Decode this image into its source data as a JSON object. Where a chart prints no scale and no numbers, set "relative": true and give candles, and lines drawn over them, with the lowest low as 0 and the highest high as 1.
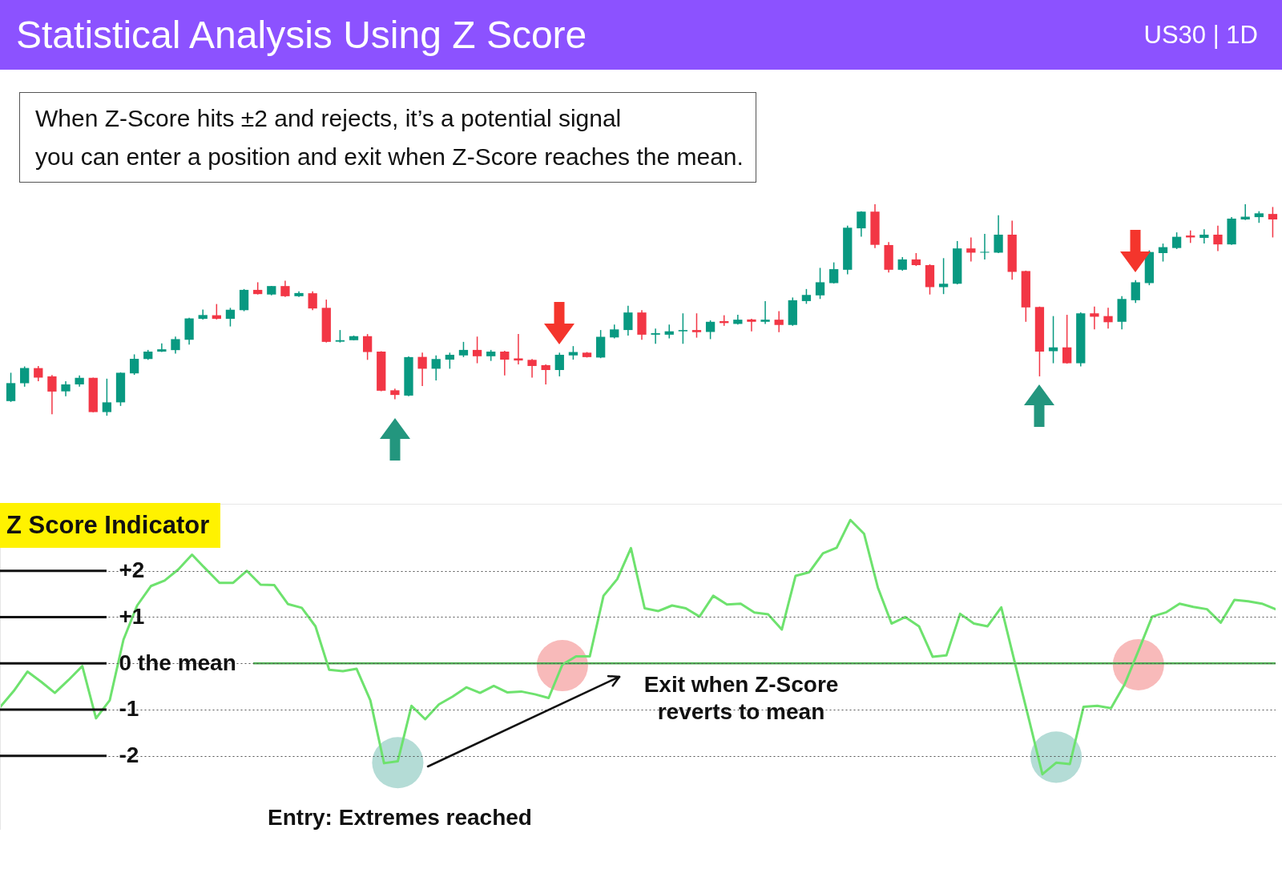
{
  "chart_data": [
    {
      "type": "candlestick",
      "title": "Statistical Analysis Using Z Score",
      "subtitle": "US30 | 1D",
      "annotations": [
        "When Z-Score hits ±2 and rejects, it’s a potential signal\nyou can enter a position and exit when Z-Score reaches the mean."
      ],
      "relative": true,
      "categories": [
        null,
        null,
        null,
        null,
        null,
        null,
        null,
        null,
        null,
        null,
        null,
        null,
        null,
        null,
        null,
        null,
        null,
        null,
        null,
        null,
        null,
        null,
        null,
        null,
        null,
        null,
        null,
        null,
        null,
        null,
        null,
        null,
        null,
        null,
        null,
        null,
        null,
        null,
        null,
        null,
        null,
        null,
        null,
        null,
        null,
        null,
        null,
        null,
        null,
        null,
        null,
        null,
        null,
        null,
        null,
        null,
        null,
        null,
        null,
        null,
        null,
        null,
        null,
        null,
        null,
        null,
        null,
        null,
        null,
        null,
        null,
        null,
        null,
        null,
        null,
        null,
        null,
        null,
        null,
        null,
        null,
        null,
        null,
        null,
        null,
        null,
        null,
        null,
        null,
        null,
        null,
        null,
        null
      ],
      "ohlc": [
        [
          0.069,
          0.203,
          0.065,
          0.154
        ],
        [
          0.153,
          0.233,
          0.137,
          0.225
        ],
        [
          0.225,
          0.235,
          0.163,
          0.18
        ],
        [
          0.186,
          0.192,
          0.007,
          0.114
        ],
        [
          0.115,
          0.163,
          0.092,
          0.148
        ],
        [
          0.148,
          0.19,
          0.137,
          0.179
        ],
        [
          0.179,
          0.18,
          0.016,
          0.017
        ],
        [
          0.017,
          0.175,
          0.0,
          0.063
        ],
        [
          0.063,
          0.205,
          0.046,
          0.203
        ],
        [
          0.2,
          0.29,
          0.193,
          0.269
        ],
        [
          0.268,
          0.311,
          0.264,
          0.303
        ],
        [
          0.303,
          0.342,
          0.301,
          0.314
        ],
        [
          0.31,
          0.374,
          0.294,
          0.362
        ],
        [
          0.359,
          0.463,
          0.336,
          0.46
        ],
        [
          0.458,
          0.502,
          0.455,
          0.476
        ],
        [
          0.475,
          0.528,
          0.455,
          0.458
        ],
        [
          0.458,
          0.51,
          0.422,
          0.501
        ],
        [
          0.499,
          0.599,
          0.494,
          0.595
        ],
        [
          0.595,
          0.631,
          0.573,
          0.575
        ],
        [
          0.573,
          0.614,
          0.569,
          0.613
        ],
        [
          0.613,
          0.638,
          0.562,
          0.565
        ],
        [
          0.565,
          0.588,
          0.562,
          0.58
        ],
        [
          0.579,
          0.588,
          0.499,
          0.507
        ],
        [
          0.51,
          0.549,
          0.346,
          0.349
        ],
        [
          0.35,
          0.405,
          0.346,
          0.357
        ],
        [
          0.357,
          0.379,
          0.356,
          0.376
        ],
        [
          0.376,
          0.386,
          0.264,
          0.301
        ],
        [
          0.303,
          0.305,
          0.116,
          0.118
        ],
        [
          0.12,
          0.128,
          0.078,
          0.098
        ],
        [
          0.095,
          0.28,
          0.092,
          0.277
        ],
        [
          0.278,
          0.298,
          0.14,
          0.222
        ],
        [
          0.222,
          0.285,
          0.167,
          0.268
        ],
        [
          0.265,
          0.298,
          0.222,
          0.288
        ],
        [
          0.285,
          0.349,
          0.277,
          0.311
        ],
        [
          0.311,
          0.374,
          0.248,
          0.281
        ],
        [
          0.281,
          0.311,
          0.259,
          0.303
        ],
        [
          0.303,
          0.307,
          0.19,
          0.265
        ],
        [
          0.271,
          0.386,
          0.242,
          0.261
        ],
        [
          0.264,
          0.268,
          0.18,
          0.235
        ],
        [
          0.239,
          0.242,
          0.148,
          0.216
        ],
        [
          0.216,
          0.298,
          0.186,
          0.288
        ],
        [
          0.285,
          0.329,
          0.265,
          0.301
        ],
        [
          0.298,
          0.301,
          0.275,
          0.277
        ],
        [
          0.275,
          0.405,
          0.272,
          0.373
        ],
        [
          0.37,
          0.431,
          0.366,
          0.408
        ],
        [
          0.405,
          0.52,
          0.379,
          0.488
        ],
        [
          0.488,
          0.499,
          0.359,
          0.383
        ],
        [
          0.383,
          0.412,
          0.34,
          0.39
        ],
        [
          0.383,
          0.431,
          0.366,
          0.399
        ],
        [
          0.399,
          0.484,
          0.34,
          0.405
        ],
        [
          0.405,
          0.484,
          0.369,
          0.395
        ],
        [
          0.396,
          0.451,
          0.362,
          0.444
        ],
        [
          0.447,
          0.475,
          0.425,
          0.438
        ],
        [
          0.434,
          0.477,
          0.431,
          0.454
        ],
        [
          0.455,
          0.458,
          0.399,
          0.444
        ],
        [
          0.444,
          0.542,
          0.434,
          0.454
        ],
        [
          0.454,
          0.494,
          0.395,
          0.429
        ],
        [
          0.429,
          0.559,
          0.425,
          0.546
        ],
        [
          0.542,
          0.599,
          0.529,
          0.571
        ],
        [
          0.569,
          0.699,
          0.552,
          0.631
        ],
        [
          0.627,
          0.725,
          0.625,
          0.693
        ],
        [
          0.69,
          0.899,
          0.669,
          0.889
        ],
        [
          0.886,
          0.967,
          0.847,
          0.965
        ],
        [
          0.965,
          1.0,
          0.793,
          0.808
        ],
        [
          0.807,
          0.821,
          0.677,
          0.69
        ],
        [
          0.69,
          0.75,
          0.686,
          0.739
        ],
        [
          0.739,
          0.769,
          0.708,
          0.712
        ],
        [
          0.712,
          0.716,
          0.573,
          0.608
        ],
        [
          0.608,
          0.745,
          0.575,
          0.624
        ],
        [
          0.624,
          0.826,
          0.621,
          0.791
        ],
        [
          0.791,
          0.843,
          0.729,
          0.771
        ],
        [
          0.771,
          0.86,
          0.739,
          0.775
        ],
        [
          0.771,
          0.948,
          0.769,
          0.856
        ],
        [
          0.856,
          0.922,
          0.643,
          0.68
        ],
        [
          0.684,
          0.686,
          0.444,
          0.512
        ],
        [
          0.514,
          0.516,
          0.186,
          0.303
        ],
        [
          0.305,
          0.471,
          0.248,
          0.323
        ],
        [
          0.323,
          0.477,
          0.246,
          0.248
        ],
        [
          0.248,
          0.489,
          0.233,
          0.484
        ],
        [
          0.484,
          0.516,
          0.408,
          0.468
        ],
        [
          0.471,
          0.51,
          0.412,
          0.442
        ],
        [
          0.444,
          0.565,
          0.408,
          0.552
        ],
        [
          0.546,
          0.641,
          0.533,
          0.631
        ],
        [
          0.627,
          0.782,
          0.617,
          0.774
        ],
        [
          0.769,
          0.814,
          0.729,
          0.797
        ],
        [
          0.793,
          0.867,
          0.788,
          0.846
        ],
        [
          0.852,
          0.876,
          0.817,
          0.843
        ],
        [
          0.841,
          0.882,
          0.814,
          0.856
        ],
        [
          0.856,
          0.899,
          0.778,
          0.81
        ],
        [
          0.81,
          0.939,
          0.808,
          0.932
        ],
        [
          0.928,
          1.0,
          0.925,
          0.941
        ],
        [
          0.939,
          0.967,
          0.912,
          0.957
        ],
        [
          0.954,
          0.987,
          0.843,
          0.928
        ]
      ],
      "colors": [
        "#089981",
        "#089981",
        "#f23645",
        "#f23645",
        "#089981",
        "#089981",
        "#f23645",
        "#089981",
        "#089981",
        "#089981",
        "#089981",
        "#089981",
        "#089981",
        "#089981",
        "#089981",
        "#f23645",
        "#089981",
        "#089981",
        "#f23645",
        "#089981",
        "#f23645",
        "#089981",
        "#f23645",
        "#f23645",
        "#089981",
        "#089981",
        "#f23645",
        "#f23645",
        "#f23645",
        "#089981",
        "#f23645",
        "#089981",
        "#089981",
        "#089981",
        "#f23645",
        "#089981",
        "#f23645",
        "#f23645",
        "#f23645",
        "#f23645",
        "#089981",
        "#089981",
        "#f23645",
        "#089981",
        "#089981",
        "#089981",
        "#f23645",
        "#089981",
        "#089981",
        "#089981",
        "#f23645",
        "#089981",
        "#f23645",
        "#089981",
        "#f23645",
        "#089981",
        "#f23645",
        "#089981",
        "#089981",
        "#089981",
        "#089981",
        "#089981",
        "#089981",
        "#f23645",
        "#f23645",
        "#089981",
        "#f23645",
        "#f23645",
        "#089981",
        "#089981",
        "#f23645",
        "#089981",
        "#089981",
        "#f23645",
        "#f23645",
        "#f23645",
        "#089981",
        "#f23645",
        "#089981",
        "#f23645",
        "#f23645",
        "#089981",
        "#089981",
        "#089981",
        "#089981",
        "#089981",
        "#f23645",
        "#089981",
        "#f23645",
        "#089981",
        "#089981",
        "#089981",
        "#f23645"
      ]
    },
    {
      "type": "line",
      "title": "Z Score Indicator",
      "annotations": [
        "Exit when Z-Score\nreverts to mean",
        "Entry: Extremes reached"
      ],
      "categories": [
        null,
        null,
        null,
        null,
        null,
        null,
        null,
        null,
        null,
        null,
        null,
        null,
        null,
        null,
        null,
        null,
        null,
        null,
        null,
        null,
        null,
        null,
        null,
        null,
        null,
        null,
        null,
        null,
        null,
        null,
        null,
        null,
        null,
        null,
        null,
        null,
        null,
        null,
        null,
        null,
        null,
        null,
        null,
        null,
        null,
        null,
        null,
        null,
        null,
        null,
        null,
        null,
        null,
        null,
        null,
        null,
        null,
        null,
        null,
        null,
        null,
        null,
        null,
        null,
        null,
        null,
        null,
        null,
        null,
        null,
        null,
        null,
        null,
        null,
        null,
        null,
        null,
        null,
        null,
        null,
        null,
        null,
        null,
        null,
        null,
        null,
        null,
        null,
        null,
        null,
        null,
        null,
        null,
        null
      ],
      "series": [
        {
          "type": "scatter",
          "marker": "circle",
          "color": "#b4dcd6",
          "values": [
            null,
            null,
            null,
            null,
            null,
            null,
            null,
            null,
            null,
            null,
            null,
            null,
            null,
            null,
            null,
            null,
            null,
            null,
            null,
            null,
            null,
            null,
            null,
            null,
            null,
            null,
            null,
            null,
            null,
            -2.15,
            null,
            null,
            null,
            null,
            null,
            null,
            null,
            null,
            null,
            null,
            null,
            null,
            null,
            null,
            null,
            null,
            null,
            null,
            null,
            null,
            null,
            null,
            null,
            null,
            null,
            null,
            null,
            null,
            null,
            null,
            null,
            null,
            null,
            null,
            null,
            null,
            null,
            null,
            null,
            null,
            null,
            null,
            null,
            null,
            null,
            null,
            null,
            -2.03,
            null,
            null,
            null,
            null,
            null,
            null,
            null,
            null,
            null,
            null,
            null,
            null,
            null,
            null,
            null,
            null
          ]
        },
        {
          "type": "scatter",
          "marker": "circle",
          "color": "#f8baba",
          "values": [
            null,
            null,
            null,
            null,
            null,
            null,
            null,
            null,
            null,
            null,
            null,
            null,
            null,
            null,
            null,
            null,
            null,
            null,
            null,
            null,
            null,
            null,
            null,
            null,
            null,
            null,
            null,
            null,
            null,
            null,
            null,
            null,
            null,
            null,
            null,
            null,
            null,
            null,
            null,
            null,
            null,
            -0.05,
            null,
            null,
            null,
            null,
            null,
            null,
            null,
            null,
            null,
            null,
            null,
            null,
            null,
            null,
            null,
            null,
            null,
            null,
            null,
            null,
            null,
            null,
            null,
            null,
            null,
            null,
            null,
            null,
            null,
            null,
            null,
            null,
            null,
            null,
            null,
            null,
            null,
            null,
            null,
            null,
            null,
            -0.03,
            null,
            null,
            null,
            null,
            null,
            null,
            null,
            null,
            null,
            null
          ]
        },
        {
          "type": "line",
          "color": "#6ee26e",
          "values": [
            -0.95,
            -0.6,
            -0.18,
            -0.4,
            -0.64,
            -0.36,
            -0.06,
            -1.19,
            -0.8,
            0.51,
            1.25,
            1.67,
            1.79,
            2.03,
            2.35,
            2.04,
            1.74,
            1.74,
            2.0,
            1.7,
            1.69,
            1.28,
            1.2,
            0.8,
            -0.14,
            -0.17,
            -0.12,
            -0.8,
            -2.16,
            -2.12,
            -0.92,
            -1.21,
            -0.89,
            -0.72,
            -0.52,
            -0.64,
            -0.49,
            -0.63,
            -0.61,
            -0.67,
            -0.75,
            -0.03,
            0.15,
            0.15,
            1.46,
            1.82,
            2.49,
            1.19,
            1.13,
            1.25,
            1.19,
            1.01,
            1.46,
            1.27,
            1.29,
            1.1,
            1.06,
            0.73,
            1.89,
            1.97,
            2.38,
            2.5,
            3.1,
            2.8,
            1.64,
            0.86,
            1.0,
            0.8,
            0.14,
            0.17,
            1.07,
            0.86,
            0.8,
            1.21,
            0.0,
            -1.19,
            -2.4,
            -2.15,
            -2.18,
            -0.94,
            -0.92,
            -0.97,
            -0.45,
            0.27,
            1.01,
            1.1,
            1.29,
            1.22,
            1.17,
            0.88,
            1.37,
            1.34,
            1.29,
            1.17
          ]
        }
      ],
      "ylim": [
        -3.6,
        3.45
      ],
      "yticks": [
        {
          "value": 2,
          "label": "+2"
        },
        {
          "value": 1,
          "label": "+1"
        },
        {
          "value": 0,
          "label": "0 the mean"
        },
        -1,
        -2
      ],
      "grid": "y",
      "tick_labels": "y",
      "ref_lines": [
        {
          "axis": "y",
          "value": 0,
          "color": "#4caf50"
        }
      ]
    }
  ]
}
